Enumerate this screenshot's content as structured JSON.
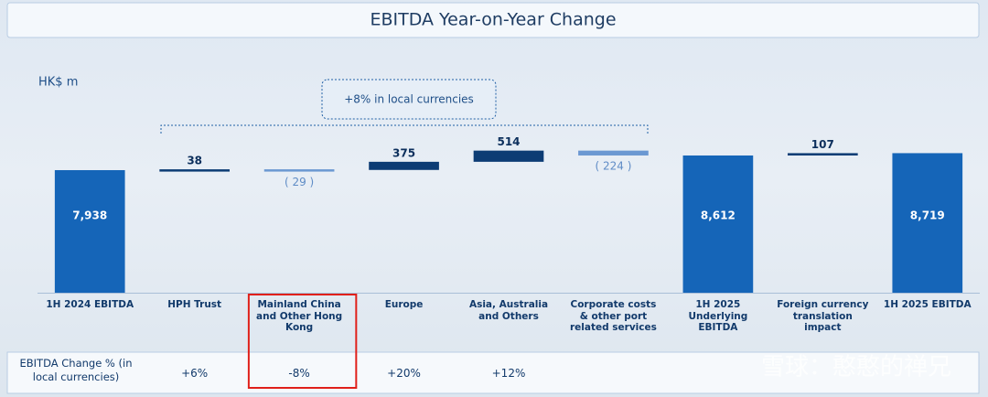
{
  "chart_data": {
    "type": "waterfall",
    "title": "EBITDA Year-on-Year Change",
    "unit_label": "HK$ m",
    "categories": [
      "1H 2024 EBITDA",
      "HPH Trust",
      "Mainland China and Other Hong Kong",
      "Europe",
      "Asia, Australia and Others",
      "Corporate costs & other port related services",
      "1H 2025 Underlying EBITDA",
      "Foreign currency translation impact",
      "1H 2025 EBITDA"
    ],
    "values": [
      7938,
      38,
      -29,
      375,
      514,
      -224,
      8612,
      107,
      8719
    ],
    "value_labels": [
      "7,938",
      "38",
      "( 29 )",
      "375",
      "514",
      "( 224 )",
      "8,612",
      "107",
      "8,719"
    ],
    "measure": [
      "total",
      "relative",
      "relative",
      "relative",
      "relative",
      "relative",
      "total",
      "relative",
      "total"
    ],
    "colors": {
      "total": "#1565b8",
      "increase": "#0c3c74",
      "decrease": "#6b98d2"
    },
    "ylim": [
      2300,
      9200
    ],
    "annotation": "+8% in local currencies",
    "change_row": {
      "label": "EBITDA Change % (in local currencies)",
      "values": [
        null,
        "+6%",
        "-8%",
        "+20%",
        "+12%",
        null,
        null,
        null,
        null
      ]
    },
    "watermark": "雪球：憨憨的禅兄"
  }
}
